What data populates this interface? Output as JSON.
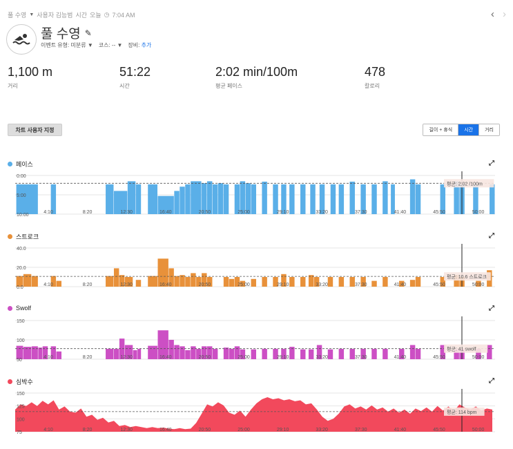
{
  "header": {
    "activity_type": "풀 수영",
    "location": "사용자 김능범",
    "time_prefix": "시간",
    "date": "오늘",
    "time": "7:04 AM"
  },
  "activity": {
    "title": "풀 수영",
    "event_label": "이벤트 유형:",
    "event_value": "미분류",
    "course_label": "코스:",
    "course_value": "--",
    "gear_label": "장비:",
    "gear_value": "추가"
  },
  "stats": [
    {
      "value": "1,100 m",
      "label": "거리"
    },
    {
      "value": "51:22",
      "label": "시간"
    },
    {
      "value": "2:02 min/100m",
      "label": "평균 페이스"
    },
    {
      "value": "478",
      "label": "칼로리"
    }
  ],
  "controls": {
    "customize": "차트 사용자 지정",
    "tabs": [
      "길이 + 휴식",
      "시간",
      "거리"
    ],
    "active_tab": 1
  },
  "x_ticks": [
    "4:10",
    "8:20",
    "12:30",
    "16:40",
    "20:50",
    "25:00",
    "29:10",
    "33:20",
    "37:30",
    "41:40",
    "45:50",
    "50:00"
  ],
  "colors": {
    "pace": "#5aafe8",
    "stroke": "#e8913a",
    "swolf": "#cc4fc4",
    "hr": "#f2495c"
  },
  "chart_data": [
    {
      "type": "bar",
      "name": "페이스",
      "color": "#5aafe8",
      "y_ticks": [
        "0:00",
        "5:00",
        "10:00"
      ],
      "ylim": [
        0,
        10
      ],
      "inverted": true,
      "avg": 2.02,
      "avg_label": "평균: 2:02 /100m",
      "bars": [
        [
          0.2,
          4.2,
          2.3
        ],
        [
          6.5,
          7.5,
          2.3
        ],
        [
          16.5,
          18,
          2.3
        ],
        [
          18,
          20.5,
          4
        ],
        [
          20.5,
          22,
          1.5
        ],
        [
          22,
          23,
          2.3
        ],
        [
          24.2,
          26,
          2.3
        ],
        [
          26,
          29,
          5.3
        ],
        [
          29,
          30,
          4
        ],
        [
          30,
          31,
          2.9
        ],
        [
          31,
          32,
          2.3
        ],
        [
          32,
          34,
          1.5
        ],
        [
          34,
          35,
          2
        ],
        [
          35,
          36,
          1.5
        ],
        [
          36,
          37,
          2.3
        ],
        [
          37,
          38,
          2
        ],
        [
          38,
          39,
          2.3
        ],
        [
          40,
          41,
          2.3
        ],
        [
          41,
          42,
          1.5
        ],
        [
          42,
          43,
          2
        ],
        [
          43,
          44,
          2.3
        ],
        [
          45,
          46,
          1.6
        ],
        [
          47,
          48,
          2.3
        ],
        [
          48.5,
          49.5,
          2.3
        ],
        [
          50,
          51,
          2.3
        ],
        [
          52,
          53,
          2.3
        ],
        [
          53.8,
          54.8,
          2.3
        ],
        [
          55.5,
          56.5,
          2.3
        ],
        [
          57.5,
          58.5,
          2.3
        ],
        [
          59,
          60,
          2.3
        ],
        [
          61,
          62,
          1.6
        ],
        [
          63,
          64,
          2.3
        ],
        [
          65,
          66,
          2.3
        ],
        [
          67,
          68,
          1.5
        ],
        [
          68.5,
          69.3,
          2.3
        ],
        [
          72,
          73,
          1
        ],
        [
          73,
          74,
          2.3
        ],
        [
          77.5,
          78.5,
          2.3
        ],
        [
          80,
          81,
          1.5
        ],
        [
          81,
          82,
          2.3
        ],
        [
          83.5,
          84.5,
          2.3
        ],
        [
          86.5,
          87.5,
          2.3
        ]
      ]
    },
    {
      "type": "bar",
      "name": "스트로크",
      "color": "#e8913a",
      "y_ticks": [
        "0.0",
        "20.0",
        "40.0"
      ],
      "ylim": [
        0,
        40
      ],
      "avg": 10.6,
      "avg_label": "평균: 10.6 스트로크",
      "bars": [
        [
          0.2,
          1.5,
          11
        ],
        [
          1.5,
          3,
          13
        ],
        [
          3,
          4.2,
          11
        ],
        [
          6.5,
          7.5,
          11
        ],
        [
          7.5,
          8.5,
          6
        ],
        [
          16.5,
          18,
          11
        ],
        [
          18,
          19,
          19
        ],
        [
          19,
          20,
          12
        ],
        [
          20,
          21.5,
          10
        ],
        [
          22,
          23,
          7
        ],
        [
          24.2,
          26,
          11
        ],
        [
          26,
          28,
          29
        ],
        [
          28,
          29,
          19
        ],
        [
          29,
          30,
          11
        ],
        [
          30,
          31,
          12
        ],
        [
          31,
          32,
          10
        ],
        [
          32,
          33,
          14
        ],
        [
          33,
          34,
          10
        ],
        [
          34,
          35,
          14
        ],
        [
          35,
          36,
          10
        ],
        [
          38,
          39,
          10
        ],
        [
          39,
          40,
          8
        ],
        [
          40,
          41,
          10
        ],
        [
          41,
          42,
          6
        ],
        [
          43,
          44,
          8
        ],
        [
          45,
          46,
          10
        ],
        [
          47,
          48,
          10
        ],
        [
          48.5,
          49.5,
          13
        ],
        [
          50,
          51,
          10
        ],
        [
          52,
          53,
          10
        ],
        [
          53.5,
          54.5,
          12
        ],
        [
          54.5,
          55.5,
          10
        ],
        [
          57,
          58,
          10
        ],
        [
          59,
          60,
          10
        ],
        [
          61,
          62,
          10
        ],
        [
          63,
          64,
          10
        ],
        [
          65,
          66,
          6
        ],
        [
          67,
          68,
          10
        ],
        [
          70,
          71,
          6
        ],
        [
          72,
          73,
          7
        ],
        [
          73,
          74,
          10
        ],
        [
          77.5,
          78.5,
          10
        ],
        [
          80,
          81,
          12
        ],
        [
          81,
          82,
          10
        ],
        [
          84,
          85,
          6
        ],
        [
          86,
          87,
          17
        ]
      ]
    },
    {
      "type": "bar",
      "name": "Swolf",
      "color": "#cc4fc4",
      "y_ticks": [
        "50",
        "100",
        "150"
      ],
      "ylim": [
        0,
        150
      ],
      "avg": 41,
      "avg_label": "평균: 41 swolf",
      "bars": [
        [
          0.2,
          1.5,
          52
        ],
        [
          1.5,
          3,
          48
        ],
        [
          3,
          4.2,
          50
        ],
        [
          4.2,
          5,
          45
        ],
        [
          5,
          6,
          50
        ],
        [
          6.5,
          7.5,
          50
        ],
        [
          7.5,
          8.5,
          30
        ],
        [
          16.5,
          18,
          40
        ],
        [
          18,
          19,
          40
        ],
        [
          19,
          20,
          80
        ],
        [
          20,
          21.5,
          55
        ],
        [
          21.5,
          22.3,
          35
        ],
        [
          22.3,
          23,
          40
        ],
        [
          24.2,
          26,
          52
        ],
        [
          26,
          28,
          112
        ],
        [
          28,
          29,
          75
        ],
        [
          29,
          30,
          55
        ],
        [
          30,
          31,
          50
        ],
        [
          31,
          32,
          35
        ],
        [
          32,
          33,
          50
        ],
        [
          33,
          34,
          40
        ],
        [
          34,
          35,
          50
        ],
        [
          35,
          36,
          50
        ],
        [
          36,
          37,
          40
        ],
        [
          38,
          39,
          45
        ],
        [
          39,
          40,
          40
        ],
        [
          40,
          41,
          50
        ],
        [
          41,
          42,
          38
        ],
        [
          43,
          44,
          38
        ],
        [
          45,
          46,
          40
        ],
        [
          47,
          48,
          40
        ],
        [
          48.5,
          49.5,
          40
        ],
        [
          50,
          51,
          48
        ],
        [
          52,
          53,
          38
        ],
        [
          53.5,
          54.5,
          38
        ],
        [
          55,
          56,
          55
        ],
        [
          57,
          58,
          38
        ],
        [
          59,
          60,
          40
        ],
        [
          61,
          62,
          40
        ],
        [
          63,
          64,
          40
        ],
        [
          65,
          66,
          40
        ],
        [
          67,
          68,
          40
        ],
        [
          70,
          71,
          40
        ],
        [
          72,
          73,
          55
        ],
        [
          73,
          74,
          40
        ],
        [
          77.5,
          78.5,
          55
        ],
        [
          80,
          81,
          38
        ],
        [
          81,
          82,
          40
        ],
        [
          84,
          85,
          40
        ],
        [
          86,
          87,
          55
        ]
      ]
    },
    {
      "type": "area",
      "name": "심박수",
      "color": "#f2495c",
      "y_ticks": [
        "75",
        "100",
        "125",
        "150"
      ],
      "ylim": [
        75,
        150
      ],
      "avg": 114,
      "avg_label": "평균: 114 bpm",
      "points": [
        [
          0,
          118
        ],
        [
          1,
          128
        ],
        [
          2,
          125
        ],
        [
          3,
          132
        ],
        [
          4,
          125
        ],
        [
          5,
          135
        ],
        [
          6,
          128
        ],
        [
          7,
          136
        ],
        [
          8,
          118
        ],
        [
          9,
          124
        ],
        [
          10,
          114
        ],
        [
          11,
          112
        ],
        [
          12,
          120
        ],
        [
          13,
          104
        ],
        [
          14,
          108
        ],
        [
          15,
          98
        ],
        [
          16,
          102
        ],
        [
          17,
          93
        ],
        [
          18,
          96
        ],
        [
          19,
          86
        ],
        [
          20,
          88
        ],
        [
          21,
          84
        ],
        [
          22,
          86
        ],
        [
          23,
          84
        ],
        [
          24,
          82
        ],
        [
          25,
          84
        ],
        [
          26,
          82
        ],
        [
          27,
          83
        ],
        [
          28,
          81
        ],
        [
          29,
          80
        ],
        [
          30,
          82
        ],
        [
          31,
          80
        ],
        [
          32,
          81
        ],
        [
          33,
          92
        ],
        [
          34,
          110
        ],
        [
          35,
          128
        ],
        [
          36,
          124
        ],
        [
          37,
          132
        ],
        [
          38,
          126
        ],
        [
          39,
          112
        ],
        [
          40,
          108
        ],
        [
          41,
          116
        ],
        [
          42,
          104
        ],
        [
          43,
          118
        ],
        [
          44,
          130
        ],
        [
          45,
          138
        ],
        [
          46,
          142
        ],
        [
          47,
          138
        ],
        [
          48,
          140
        ],
        [
          49,
          136
        ],
        [
          50,
          138
        ],
        [
          51,
          134
        ],
        [
          52,
          136
        ],
        [
          53,
          128
        ],
        [
          54,
          130
        ],
        [
          55,
          118
        ],
        [
          56,
          104
        ],
        [
          57,
          96
        ],
        [
          58,
          100
        ],
        [
          59,
          110
        ],
        [
          60,
          124
        ],
        [
          61,
          128
        ],
        [
          62,
          120
        ],
        [
          63,
          124
        ],
        [
          64,
          118
        ],
        [
          65,
          126
        ],
        [
          66,
          118
        ],
        [
          67,
          122
        ],
        [
          68,
          114
        ],
        [
          69,
          120
        ],
        [
          70,
          112
        ],
        [
          71,
          118
        ],
        [
          72,
          110
        ],
        [
          73,
          120
        ],
        [
          74,
          115
        ],
        [
          75,
          122
        ],
        [
          76,
          114
        ],
        [
          77,
          125
        ],
        [
          78,
          116
        ],
        [
          79,
          124
        ],
        [
          80,
          115
        ],
        [
          81,
          128
        ],
        [
          82,
          122
        ],
        [
          83,
          118
        ],
        [
          84,
          124
        ],
        [
          85,
          116
        ],
        [
          86,
          120
        ],
        [
          87,
          118
        ]
      ]
    }
  ]
}
